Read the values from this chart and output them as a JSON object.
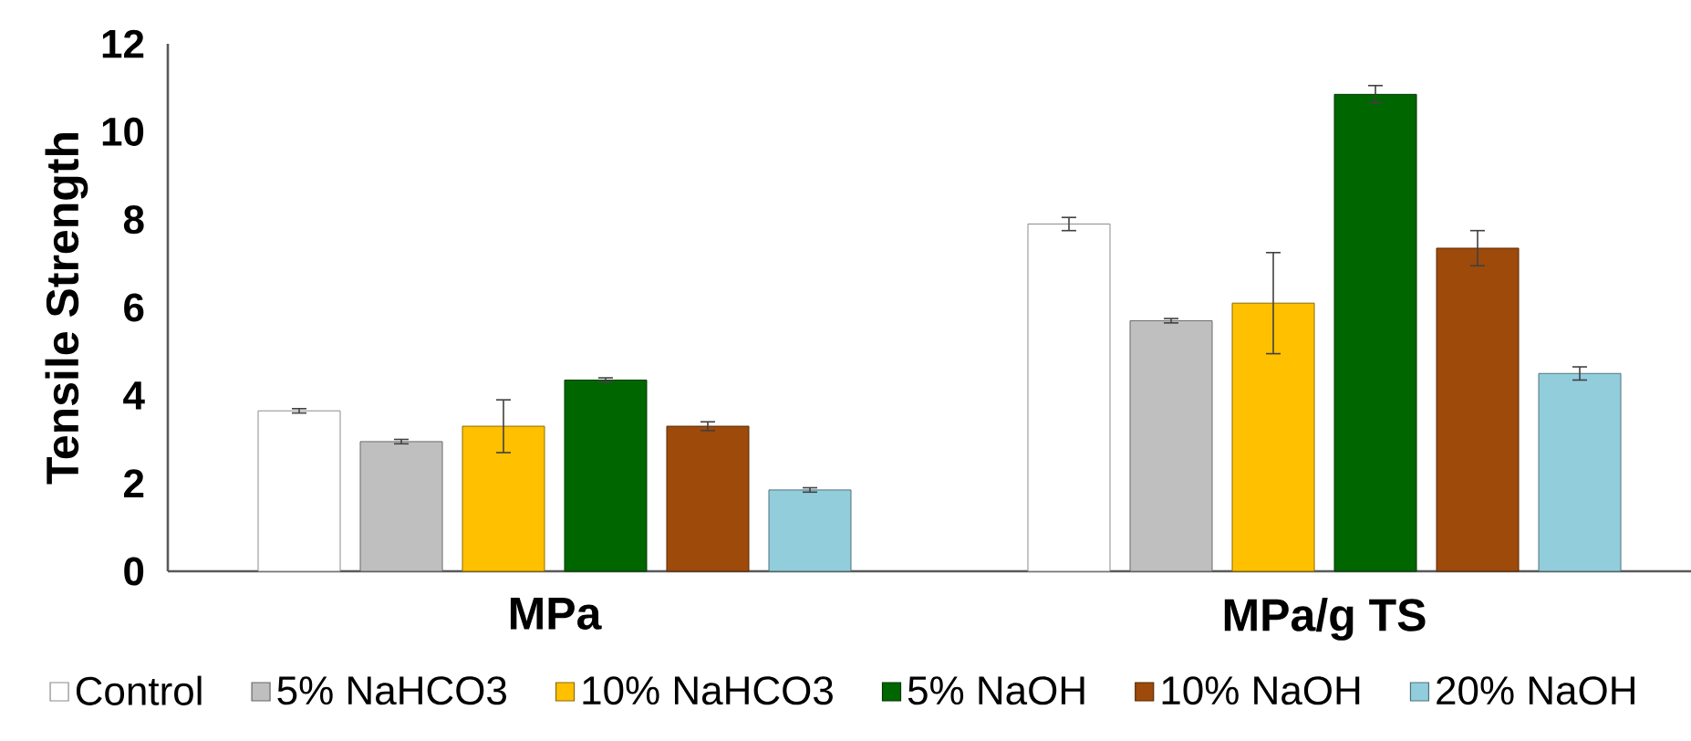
{
  "chart_data": {
    "type": "bar",
    "ylabel": "Tensile Strength",
    "categories": [
      "MPa",
      "MPa/g TS"
    ],
    "series": [
      {
        "name": "Control",
        "color": "#ffffff",
        "values": [
          3.65,
          7.9
        ],
        "errors": [
          0.05,
          0.15
        ]
      },
      {
        "name": "5% NaHCO3",
        "color": "#bfbfbf",
        "values": [
          2.95,
          5.7
        ],
        "errors": [
          0.05,
          0.05
        ]
      },
      {
        "name": "10% NaHCO3",
        "color": "#ffc000",
        "values": [
          3.3,
          6.1
        ],
        "errors": [
          0.6,
          1.15
        ]
      },
      {
        "name": "5% NaOH",
        "color": "#006600",
        "values": [
          4.35,
          10.85
        ],
        "errors": [
          0.05,
          0.2
        ]
      },
      {
        "name": "10% NaOH",
        "color": "#9e4a0b",
        "values": [
          3.3,
          7.35
        ],
        "errors": [
          0.1,
          0.4
        ]
      },
      {
        "name": "20% NaOH",
        "color": "#92cddc",
        "values": [
          1.85,
          4.5
        ],
        "errors": [
          0.05,
          0.15
        ]
      }
    ],
    "ylim": [
      0,
      12
    ],
    "yticks": [
      0,
      2,
      4,
      6,
      8,
      10,
      12
    ],
    "grid": false,
    "legend": "bottom"
  }
}
